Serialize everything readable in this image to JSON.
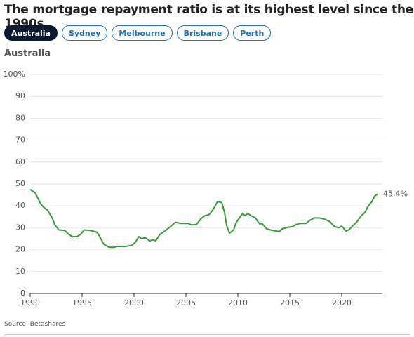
{
  "title": "The mortgage repayment ratio is at its highest level since the 1990s",
  "tabs": [
    "Australia",
    "Sydney",
    "Melbourne",
    "Brisbane",
    "Perth"
  ],
  "active_tab": 0,
  "source": "Source: Betashares",
  "chart_data": {
    "type": "line",
    "title": "Australia",
    "x": [
      1990.0,
      1990.47,
      1991.01,
      1991.28,
      1991.69,
      1992.16,
      1992.36,
      1992.77,
      1993.31,
      1993.72,
      1994.05,
      1994.53,
      1994.86,
      1995.2,
      1995.74,
      1996.42,
      1996.69,
      1997.09,
      1997.57,
      1997.91,
      1998.45,
      1999.12,
      1999.8,
      2000.14,
      2000.47,
      2000.74,
      2001.08,
      2001.49,
      2001.82,
      2002.09,
      2002.5,
      2002.97,
      2003.51,
      2003.99,
      2004.53,
      2005.2,
      2005.54,
      2006.01,
      2006.42,
      2006.82,
      2007.23,
      2007.64,
      2008.04,
      2008.45,
      2008.72,
      2008.92,
      2009.19,
      2009.59,
      2009.8,
      2010.07,
      2010.47,
      2010.68,
      2010.95,
      2011.28,
      2011.69,
      2012.09,
      2012.36,
      2012.77,
      2013.31,
      2013.99,
      2014.26,
      2014.8,
      2015.27,
      2015.61,
      2016.01,
      2016.55,
      2016.96,
      2017.36,
      2017.84,
      2018.31,
      2018.85,
      2019.32,
      2019.73,
      2020.0,
      2020.41,
      2020.68,
      2021.08,
      2021.42,
      2021.89,
      2022.23,
      2022.57,
      2022.91,
      2023.18,
      2023.45
    ],
    "series": [
      {
        "name": "Australia",
        "color": "#3a9a3a",
        "values": [
          47.5,
          46,
          41,
          39.5,
          38,
          34,
          31.5,
          29,
          28.8,
          27,
          26,
          26,
          27,
          29,
          28.8,
          28,
          26,
          22.5,
          21.2,
          21,
          21.5,
          21.4,
          22,
          23.5,
          26,
          25,
          25.5,
          24,
          24.5,
          24,
          27,
          28.5,
          30.5,
          32.5,
          32,
          32,
          31.3,
          31.5,
          34,
          35.5,
          36,
          38.5,
          42,
          41.5,
          37,
          31,
          27.5,
          29,
          32,
          34,
          36.5,
          35.5,
          36.5,
          35.5,
          34.5,
          31.8,
          31.8,
          29.5,
          28.8,
          28.3,
          29.5,
          30.2,
          30.5,
          31.5,
          32,
          32,
          33.5,
          34.5,
          34.5,
          34,
          32.8,
          30.5,
          30,
          30.8,
          28.5,
          29,
          31,
          32.5,
          35.5,
          37,
          40,
          42,
          44.5,
          45.4
        ]
      }
    ],
    "last_value_label": "45.4%",
    "xlim": [
      1990,
      2023.92
    ],
    "xticks": [
      1990,
      1995,
      2000,
      2005,
      2010,
      2015,
      2020
    ],
    "ylim": [
      0,
      100
    ],
    "yticks": [
      0,
      10,
      20,
      30,
      40,
      50,
      60,
      70,
      80,
      90,
      {
        "value": 100,
        "label": "100%"
      }
    ],
    "grid": true
  }
}
